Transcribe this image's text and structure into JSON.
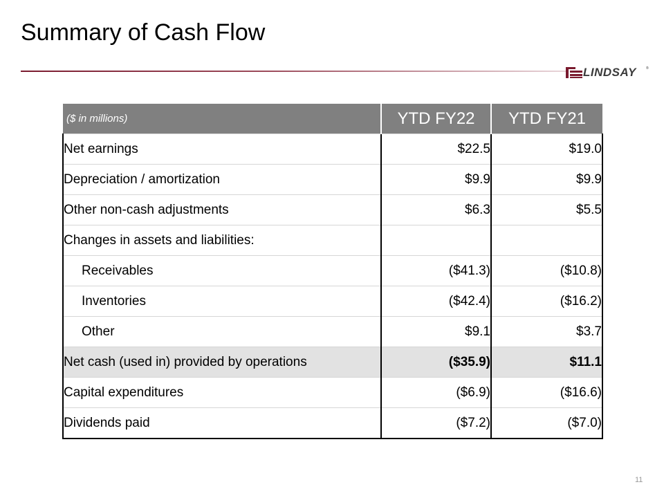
{
  "slide": {
    "title": "Summary of Cash Flow",
    "page_number": "11",
    "logo_text": "LINDSAY",
    "logo_tm": "®",
    "accent_color": "#7a1a2e"
  },
  "table": {
    "unit_label": "($ in millions)",
    "col1": "YTD FY22",
    "col2": "YTD FY21",
    "rows": [
      {
        "label": "Net earnings",
        "fy22": "$22.5",
        "fy21": "$19.0"
      },
      {
        "label": "Depreciation / amortization",
        "fy22": "$9.9",
        "fy21": "$9.9"
      },
      {
        "label": "Other non-cash adjustments",
        "fy22": "$6.3",
        "fy21": "$5.5"
      },
      {
        "label": "Changes in assets and liabilities:",
        "fy22": "",
        "fy21": ""
      },
      {
        "label": "Receivables",
        "fy22": "($41.3)",
        "fy21": "($10.8)"
      },
      {
        "label": "Inventories",
        "fy22": "($42.4)",
        "fy21": "($16.2)"
      },
      {
        "label": "Other",
        "fy22": "$9.1",
        "fy21": "$3.7"
      },
      {
        "label": "Net cash (used in) provided by operations",
        "fy22": "($35.9)",
        "fy21": "$11.1"
      },
      {
        "label": "Capital expenditures",
        "fy22": "($6.9)",
        "fy21": "($16.6)"
      },
      {
        "label": "Dividends paid",
        "fy22": "($7.2)",
        "fy21": "($7.0)"
      }
    ]
  }
}
